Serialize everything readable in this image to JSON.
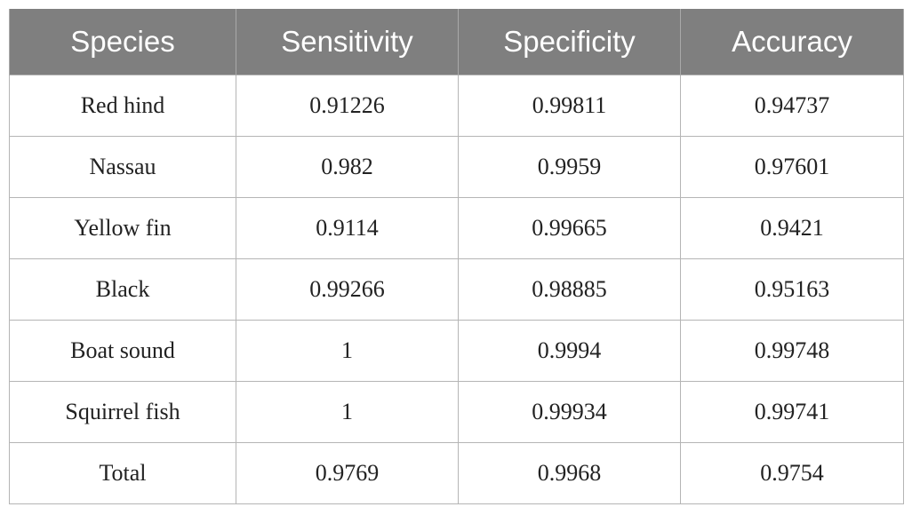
{
  "table": {
    "headers": [
      "Species",
      "Sensitivity",
      "Specificity",
      "Accuracy"
    ],
    "rows": [
      [
        "Red hind",
        "0.91226",
        "0.99811",
        "0.94737"
      ],
      [
        "Nassau",
        "0.982",
        "0.9959",
        "0.97601"
      ],
      [
        "Yellow fin",
        "0.9114",
        "0.99665",
        "0.9421"
      ],
      [
        "Black",
        "0.99266",
        "0.98885",
        "0.95163"
      ],
      [
        "Boat sound",
        "1",
        "0.9994",
        "0.99748"
      ],
      [
        "Squirrel fish",
        "1",
        "0.99934",
        "0.99741"
      ],
      [
        "Total",
        "0.9769",
        "0.9968",
        "0.9754"
      ]
    ]
  },
  "colors": {
    "header_bg": "#7f7f7f",
    "header_text": "#ffffff",
    "border": "#b5b5b5"
  }
}
